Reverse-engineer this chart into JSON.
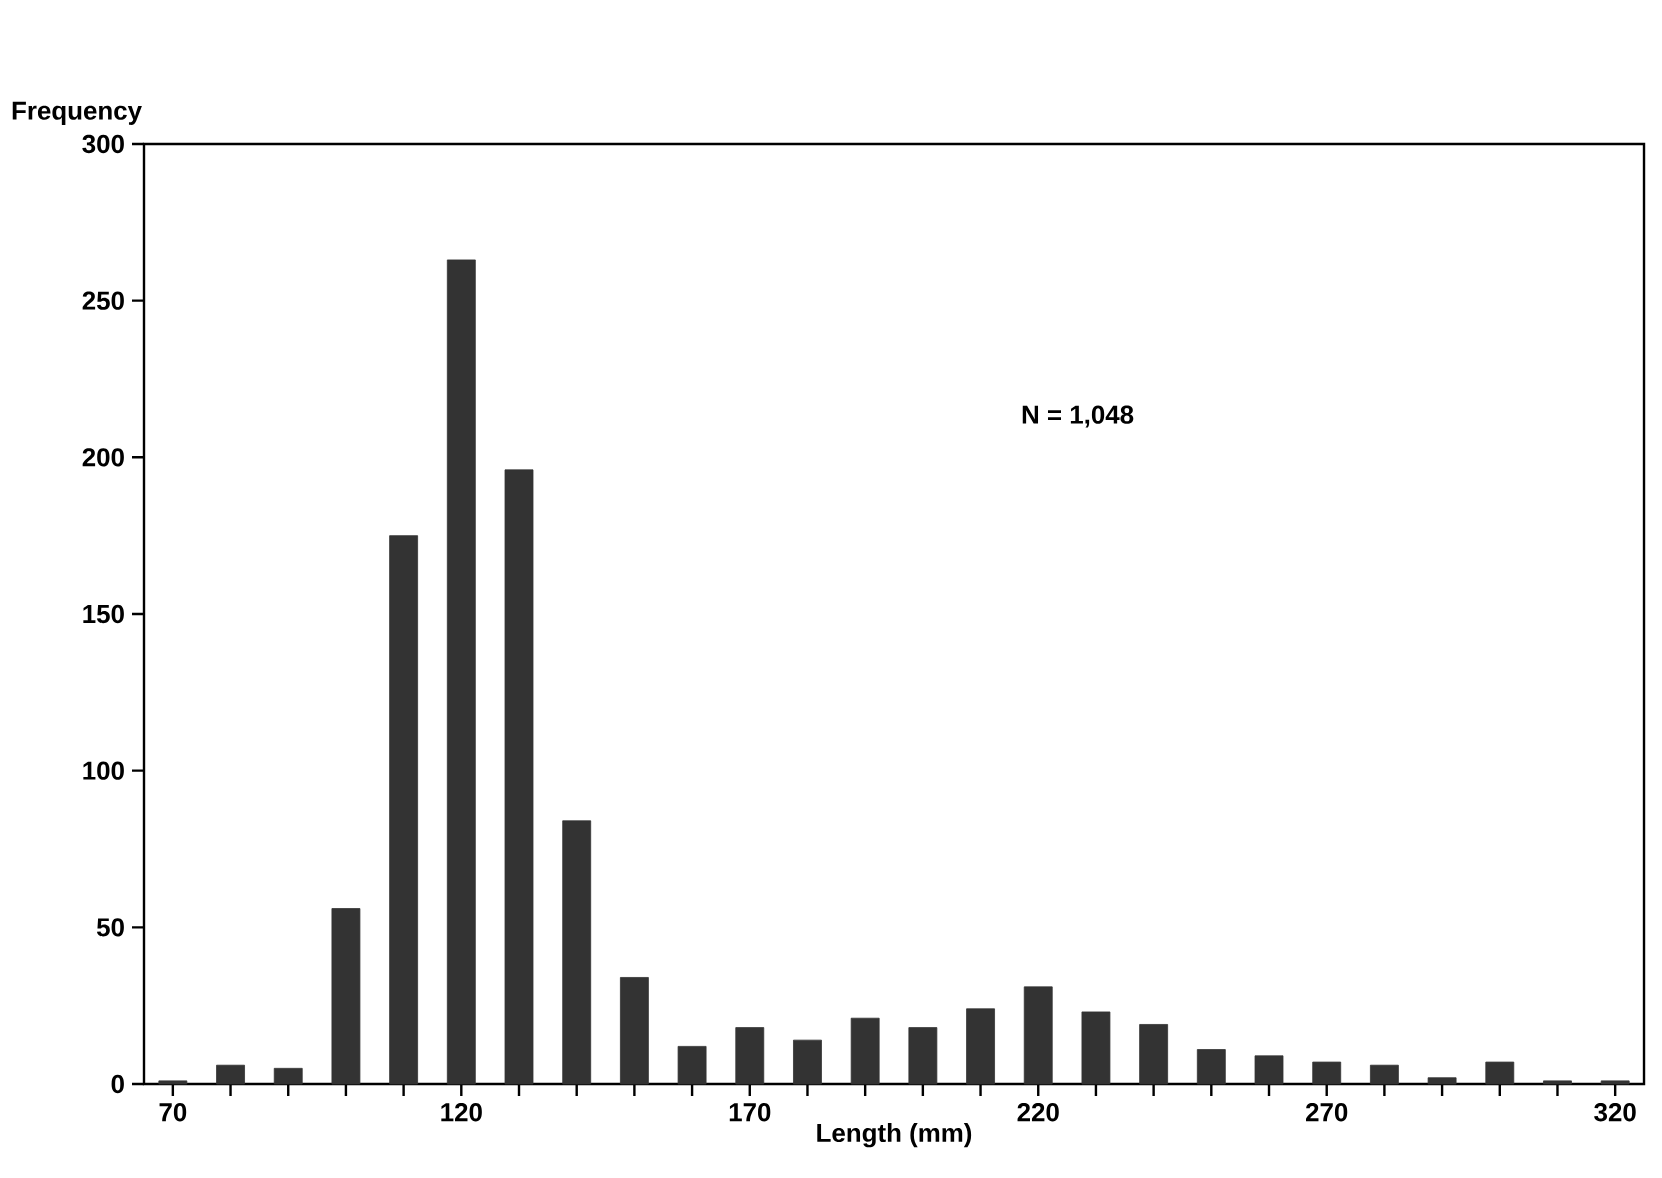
{
  "chart_data": {
    "type": "bar",
    "xlabel": "Length (mm)",
    "ylabel": "Frequency",
    "annotations": [
      "N = 1,048"
    ],
    "x": [
      70,
      80,
      90,
      100,
      110,
      120,
      130,
      140,
      150,
      160,
      170,
      180,
      190,
      200,
      210,
      220,
      230,
      240,
      250,
      260,
      270,
      280,
      290,
      300,
      310,
      320
    ],
    "values": [
      1,
      6,
      5,
      56,
      175,
      263,
      196,
      84,
      34,
      12,
      18,
      14,
      21,
      18,
      24,
      31,
      23,
      19,
      11,
      9,
      7,
      6,
      2,
      7,
      1,
      1
    ],
    "color": "#333333",
    "xlim": [
      65,
      325
    ],
    "ylim": [
      0,
      300
    ],
    "xticks": [
      70,
      {
        "value": 80,
        "label": null
      },
      {
        "value": 90,
        "label": null
      },
      {
        "value": 100,
        "label": null
      },
      {
        "value": 110,
        "label": null
      },
      120,
      {
        "value": 130,
        "label": null
      },
      {
        "value": 140,
        "label": null
      },
      {
        "value": 150,
        "label": null
      },
      {
        "value": 160,
        "label": null
      },
      170,
      {
        "value": 180,
        "label": null
      },
      {
        "value": 190,
        "label": null
      },
      {
        "value": 200,
        "label": null
      },
      {
        "value": 210,
        "label": null
      },
      220,
      {
        "value": 230,
        "label": null
      },
      {
        "value": 240,
        "label": null
      },
      {
        "value": 250,
        "label": null
      },
      {
        "value": 260,
        "label": null
      },
      270,
      {
        "value": 280,
        "label": null
      },
      {
        "value": 290,
        "label": null
      },
      {
        "value": 300,
        "label": null
      },
      {
        "value": 310,
        "label": null
      },
      320
    ],
    "yticks": [
      0,
      50,
      100,
      150,
      200,
      250,
      300
    ]
  }
}
